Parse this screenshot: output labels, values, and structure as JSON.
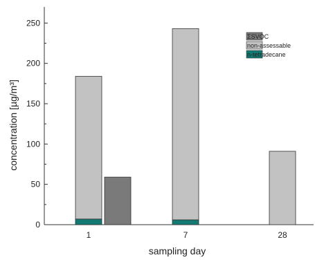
{
  "chart_data": {
    "type": "bar",
    "categories": [
      "1",
      "7",
      "28"
    ],
    "xlabel": "sampling day",
    "ylabel": "concentration [µg/m³]",
    "ylim": [
      0,
      270
    ],
    "yticks": [
      0,
      50,
      100,
      150,
      200,
      250
    ],
    "stacked_series": [
      {
        "name": "n-tetradecane",
        "color": "#127a72",
        "values": [
          7,
          6,
          0
        ]
      },
      {
        "name": "non-assessable",
        "color": "#c2c2c2",
        "values": [
          177,
          237,
          91
        ]
      }
    ],
    "separate_series": [
      {
        "name": "ΣSVOC",
        "color": "#7a7a7a",
        "values": [
          59,
          0,
          0
        ]
      }
    ],
    "legend": {
      "position": "top-right",
      "items": [
        {
          "name": "ΣSVOC",
          "color": "#7a7a7a"
        },
        {
          "name": "non-assessable",
          "color": "#c2c2c2"
        },
        {
          "name": "n-tetradecane",
          "color": "#127a72"
        }
      ]
    }
  }
}
